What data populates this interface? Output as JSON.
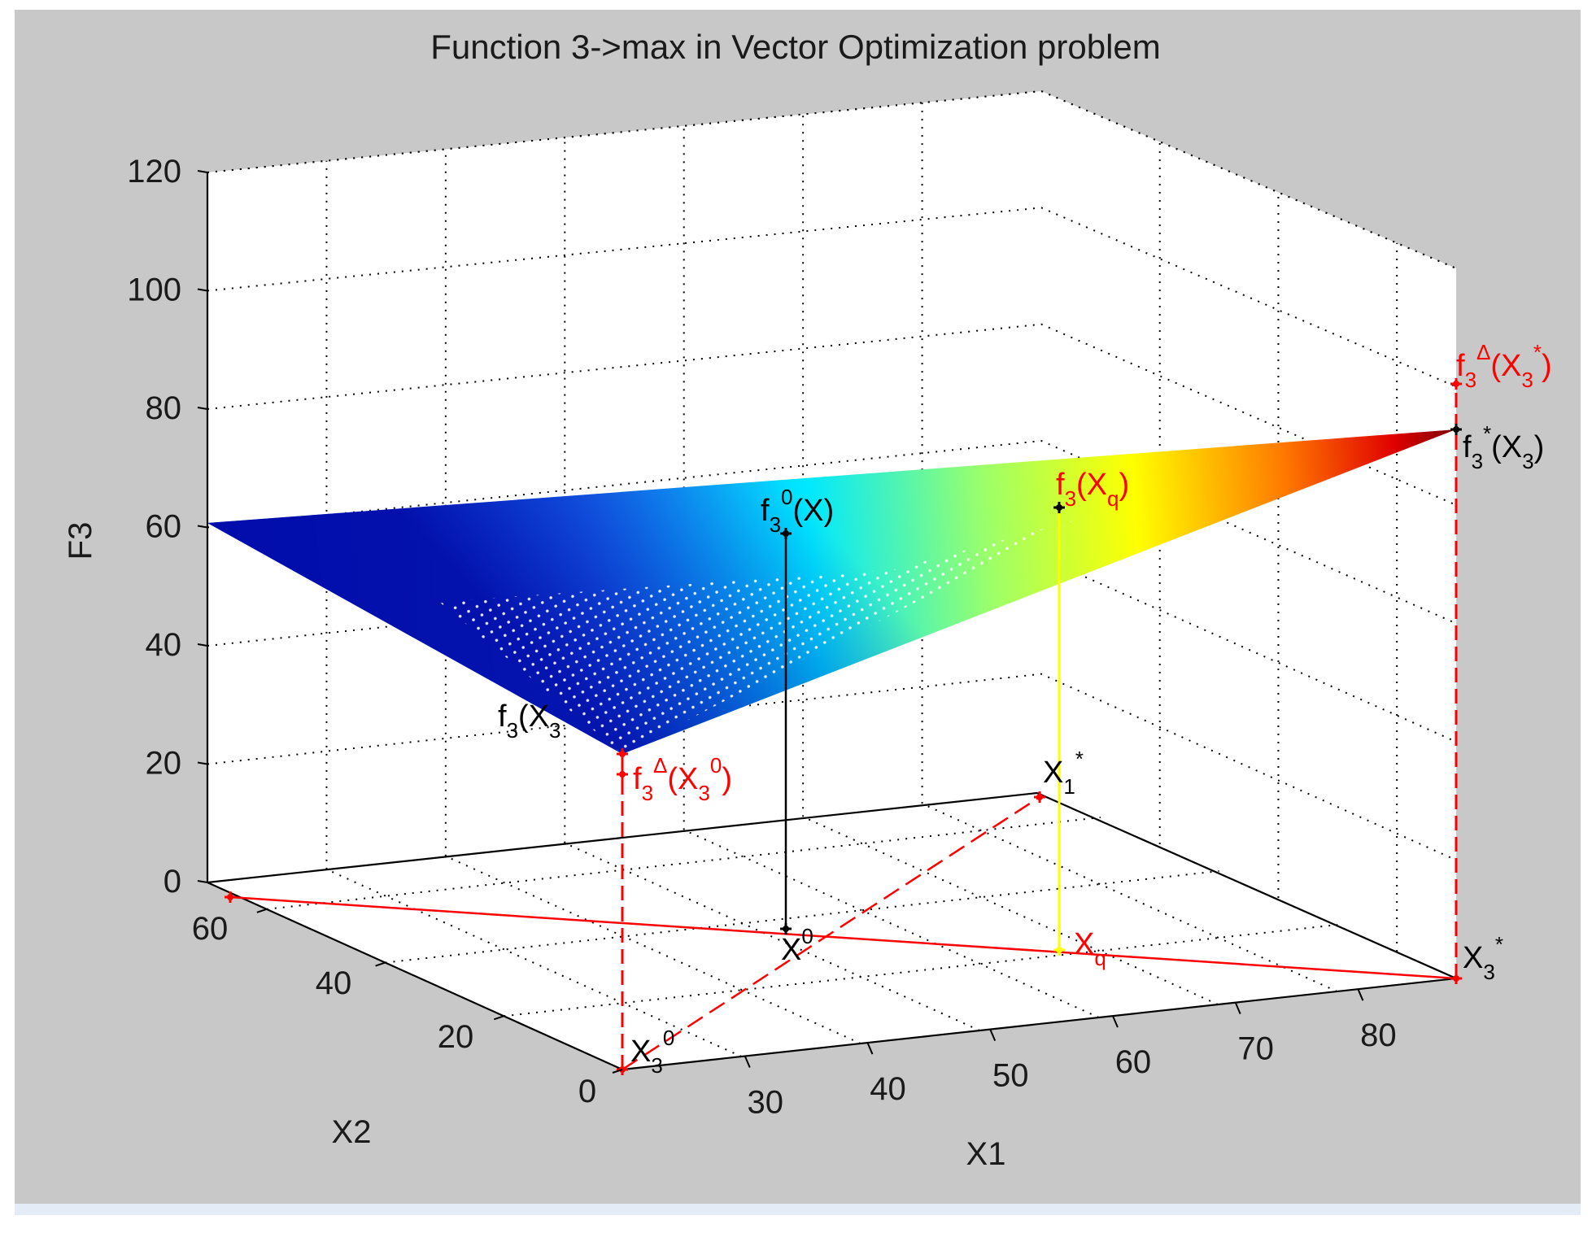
{
  "chart_data": {
    "type": "surface3d",
    "title": "Function 3->max in Vector Optimization problem",
    "xlabel": "X1",
    "ylabel": "X2",
    "zlabel": "F3",
    "xticks": [
      "30",
      "40",
      "50",
      "60",
      "70",
      "80"
    ],
    "yticks": [
      "0",
      "20",
      "40",
      "60"
    ],
    "zticks": [
      "0",
      "20",
      "40",
      "60",
      "80",
      "100",
      "120"
    ],
    "xlim": [
      20,
      88
    ],
    "ylim": [
      0,
      70
    ],
    "zlim": [
      0,
      120
    ],
    "grid": true,
    "colormap": "jet",
    "surface": {
      "corners": [
        {
          "point": "X_3^0",
          "x1": 23,
          "x2": 0,
          "f3": 22
        },
        {
          "point": "X_1^*",
          "x1": 65,
          "x2": 43,
          "f3": 59
        },
        {
          "point": "X_3^*",
          "x1": 88,
          "x2": 0,
          "f3": 78
        }
      ]
    },
    "points": [
      {
        "point": "X^0",
        "x1": 43,
        "x2": 24,
        "f3": 58
      },
      {
        "point": "X_q",
        "x1": 63,
        "x2": 16,
        "f3": 63
      }
    ],
    "constraint_lines": [
      {
        "from": "X_3^0",
        "to": "X_1^*",
        "style": "dashed",
        "color": "#ff0000"
      },
      {
        "from": "X_3^*",
        "to": "x2-axis at 60",
        "style": "solid",
        "color": "#ff0000"
      }
    ],
    "annotations": {
      "f3X0": {
        "main": "f",
        "sub": "3",
        "rest": "(X",
        "sup": "0",
        "close": ")"
      },
      "f3Xq": {
        "main": "f",
        "sub": "3",
        "rest": "(X",
        "sub2": "q",
        "close": ")"
      },
      "f3X30": {
        "main": "f",
        "sub": "3",
        "rest": "(X",
        "sub2": "3"
      },
      "f3X3star": {
        "main": "f",
        "sub": "3",
        "rest": "(X",
        "sub2": "3",
        "sup": "*",
        "close": ")"
      },
      "f3DeltaX30": {
        "main": "f",
        "sub": "3",
        "sup": "Δ",
        "rest": "(X",
        "sub2": "3",
        "sup2": "0",
        "close": ")"
      },
      "f3DeltaX3star": {
        "main": "f",
        "sub": "3",
        "sup": "Δ",
        "rest": "(X",
        "sub2": "3",
        "sup2": "*",
        "close": ")"
      },
      "X0": {
        "main": "X",
        "sup": "0"
      },
      "Xq": {
        "main": "X",
        "sub": "q"
      },
      "X1star": {
        "main": "X",
        "sub": "1",
        "sup": "*"
      },
      "X3star": {
        "main": "X",
        "sub": "3",
        "sup": "*"
      },
      "X30": {
        "main": "X",
        "sub": "3",
        "sup": "0"
      }
    },
    "colors": {
      "red": "#ff0000",
      "black": "#000000",
      "yellow": "#ffff00",
      "background": "#c8c8c8"
    }
  }
}
